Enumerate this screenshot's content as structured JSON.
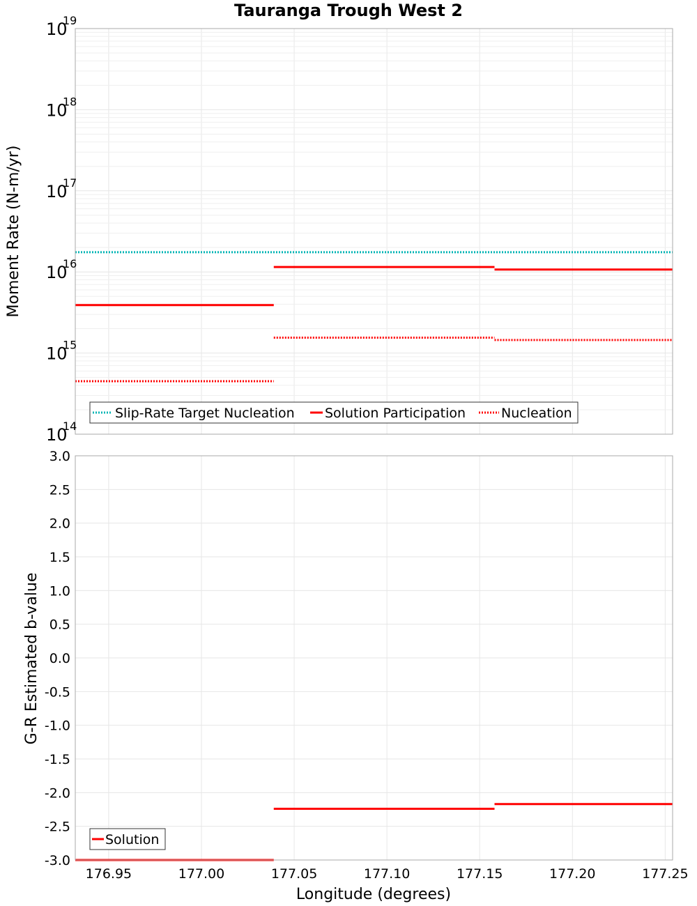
{
  "chart_data": [
    {
      "type": "line",
      "title": "Tauranga Trough West 2",
      "xlabel": "Longitude (degrees)",
      "ylabel": "Moment Rate (N-m/yr)",
      "yscale": "log",
      "xlim": [
        176.932,
        177.254
      ],
      "ylim_exp": [
        14,
        19
      ],
      "ytick_base": "10",
      "yticks_exp": [
        "14",
        "15",
        "16",
        "17",
        "18",
        "19"
      ],
      "legend_position": "bottom-left",
      "series": [
        {
          "name": "Slip-Rate Target Nucleation",
          "color": "#00b4b4",
          "style": "dotted",
          "segments": [
            {
              "x": [
                176.932,
                177.254
              ],
              "y": 1.75e+16
            }
          ]
        },
        {
          "name": "Solution Participation",
          "color": "#ff0000",
          "style": "solid",
          "segments": [
            {
              "x": [
                176.932,
                177.039
              ],
              "y": 3900000000000000.0
            },
            {
              "x": [
                177.039,
                177.158
              ],
              "y": 1.15e+16
            },
            {
              "x": [
                177.158,
                177.254
              ],
              "y": 1.07e+16
            }
          ]
        },
        {
          "name": "Nucleation",
          "color": "#ff0000",
          "style": "dotted",
          "segments": [
            {
              "x": [
                176.932,
                177.039
              ],
              "y": 450000000000000.0
            },
            {
              "x": [
                177.039,
                177.158
              ],
              "y": 1550000000000000.0
            },
            {
              "x": [
                177.158,
                177.254
              ],
              "y": 1450000000000000.0
            }
          ]
        }
      ]
    },
    {
      "type": "line",
      "title": "",
      "xlabel": "Longitude (degrees)",
      "ylabel": "G-R Estimated b-value",
      "xlim": [
        176.932,
        177.254
      ],
      "ylim": [
        -3.0,
        3.0
      ],
      "xticks": [
        "176.95",
        "177.00",
        "177.05",
        "177.10",
        "177.15",
        "177.20",
        "177.25"
      ],
      "yticks": [
        "-3.0",
        "-2.5",
        "-2.0",
        "-1.5",
        "-1.0",
        "-0.5",
        "0.0",
        "0.5",
        "1.0",
        "1.5",
        "2.0",
        "2.5",
        "3.0"
      ],
      "legend_position": "bottom-left",
      "series": [
        {
          "name": "Solution",
          "color": "#ff0000",
          "style": "solid",
          "segments": [
            {
              "x": [
                176.932,
                177.039
              ],
              "y": -3.0
            },
            {
              "x": [
                177.039,
                177.158
              ],
              "y": -2.24
            },
            {
              "x": [
                177.158,
                177.254
              ],
              "y": -2.17
            }
          ]
        }
      ]
    }
  ]
}
